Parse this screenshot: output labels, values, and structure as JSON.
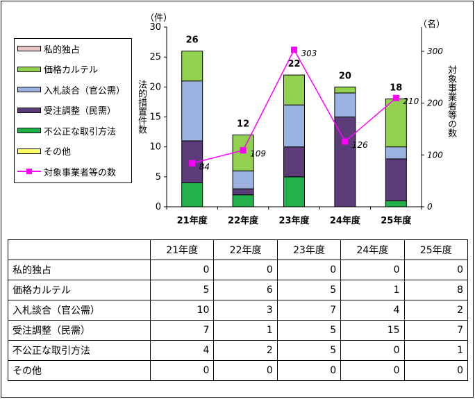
{
  "chart_data": {
    "type": "bar",
    "stacked": true,
    "categories": [
      "21年度",
      "22年度",
      "23年度",
      "24年度",
      "25年度"
    ],
    "series": [
      {
        "name": "不公正な取引方法",
        "values": [
          4,
          2,
          5,
          0,
          1
        ],
        "color": "#22b14c"
      },
      {
        "name": "受注調整（民需）",
        "values": [
          7,
          1,
          5,
          15,
          7
        ],
        "color": "#5c3d7a"
      },
      {
        "name": "入札談合（官公需）",
        "values": [
          10,
          3,
          7,
          4,
          2
        ],
        "color": "#9db3df"
      },
      {
        "name": "価格カルテル",
        "values": [
          5,
          6,
          5,
          1,
          8
        ],
        "color": "#92d050"
      },
      {
        "name": "私的独占",
        "values": [
          0,
          0,
          0,
          0,
          0
        ],
        "color": "#e8c6c6"
      },
      {
        "name": "その他",
        "values": [
          0,
          0,
          0,
          0,
          0
        ],
        "color": "#ffff66"
      }
    ],
    "totals": [
      "26",
      "12",
      "22",
      "20",
      "18"
    ],
    "line_series": {
      "name": "対象事業者等の数",
      "values": [
        84,
        109,
        303,
        126,
        210
      ],
      "labels": [
        "84",
        "109",
        "303",
        "126",
        "210"
      ],
      "color": "#ff00ff"
    },
    "y_left": {
      "label": "法的措置件数",
      "unit": "（件）",
      "min": 0,
      "max": 30,
      "step": 5,
      "ticks": [
        "0",
        "5",
        "10",
        "15",
        "20",
        "25",
        "30"
      ]
    },
    "y_right": {
      "label": "対象事業者等の数",
      "unit": "（名）",
      "min": 0,
      "max": 350,
      "step": 100,
      "ticks": [
        "0",
        "100",
        "200",
        "300"
      ]
    },
    "legend_placement": "top-left",
    "grid": false
  },
  "legend": {
    "items": [
      {
        "label": "私的独占",
        "color": "#e8c6c6",
        "kind": "box"
      },
      {
        "label": "価格カルテル",
        "color": "#92d050",
        "kind": "box"
      },
      {
        "label": "入札談合（官公需）",
        "color": "#9db3df",
        "kind": "box"
      },
      {
        "label": "受注調整（民需）",
        "color": "#5c3d7a",
        "kind": "box"
      },
      {
        "label": "不公正な取引方法",
        "color": "#22b14c",
        "kind": "box"
      },
      {
        "label": "その他",
        "color": "#ffff66",
        "kind": "box"
      },
      {
        "label": "対象事業者等の数",
        "color": "#ff00ff",
        "kind": "line"
      }
    ]
  },
  "table": {
    "headers": [
      "",
      "21年度",
      "22年度",
      "23年度",
      "24年度",
      "25年度"
    ],
    "rows": [
      {
        "label": "私的独占",
        "values": [
          "0",
          "0",
          "0",
          "0",
          "0"
        ]
      },
      {
        "label": "価格カルテル",
        "values": [
          "5",
          "6",
          "5",
          "1",
          "8"
        ]
      },
      {
        "label": "入札談合（官公需）",
        "values": [
          "10",
          "3",
          "7",
          "4",
          "2"
        ]
      },
      {
        "label": "受注調整（民需）",
        "values": [
          "7",
          "1",
          "5",
          "15",
          "7"
        ]
      },
      {
        "label": "不公正な取引方法",
        "values": [
          "4",
          "2",
          "5",
          "0",
          "1"
        ]
      },
      {
        "label": "その他",
        "values": [
          "0",
          "0",
          "0",
          "0",
          "0"
        ]
      }
    ]
  }
}
